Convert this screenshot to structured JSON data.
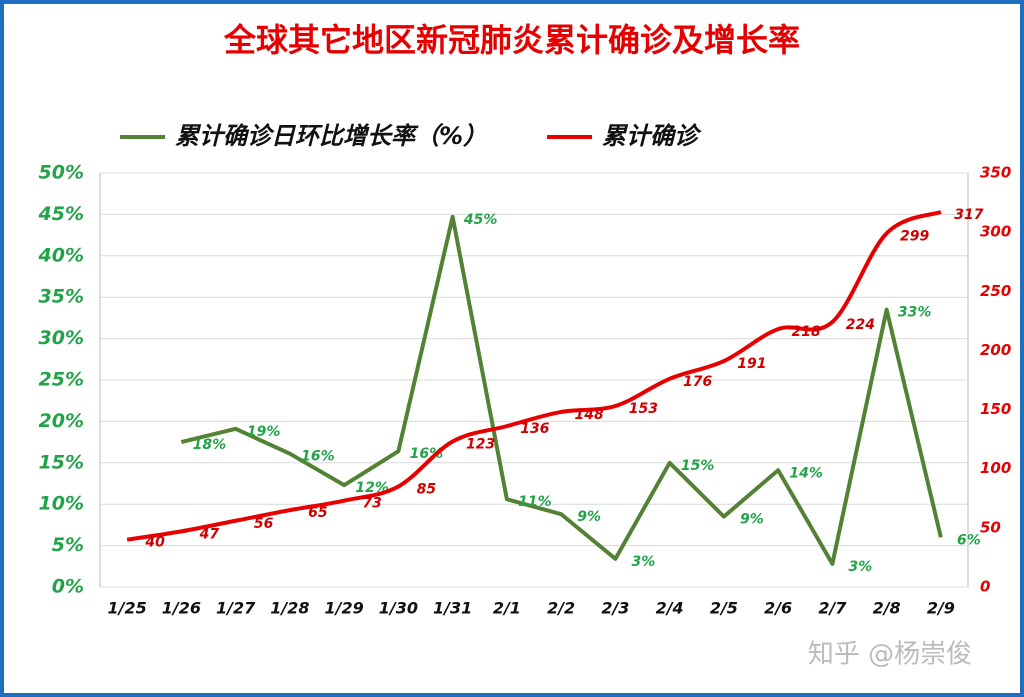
{
  "chart_data": {
    "type": "line",
    "title": "全球其它地区新冠肺炎累计确诊及增长率",
    "watermark": "知乎 @杨崇俊",
    "categories": [
      "1/25",
      "1/26",
      "1/27",
      "1/28",
      "1/29",
      "1/30",
      "1/31",
      "2/1",
      "2/2",
      "2/3",
      "2/4",
      "2/5",
      "2/6",
      "2/7",
      "2/8",
      "2/9"
    ],
    "series": [
      {
        "name": "累计确诊日环比增长率（%）",
        "color": "#548235",
        "axis": "y",
        "values": [
          null,
          17.5,
          19.1,
          16.1,
          12.3,
          16.4,
          44.7,
          10.6,
          8.8,
          3.4,
          15.0,
          8.5,
          14.1,
          2.8,
          33.5,
          6.0
        ],
        "value_labels": [
          null,
          "18%",
          "19%",
          "16%",
          "12%",
          "16%",
          "45%",
          "11%",
          "9%",
          "3%",
          "15%",
          "9%",
          "14%",
          "3%",
          "33%",
          "6%"
        ]
      },
      {
        "name": "累计确诊",
        "color": "#e60000",
        "axis": "y2",
        "values": [
          40,
          47,
          56,
          65,
          73,
          85,
          123,
          136,
          148,
          153,
          176,
          191,
          218,
          224,
          299,
          317
        ]
      }
    ],
    "ylim": [
      0,
      50
    ],
    "yticks": [
      {
        "value": 0,
        "label": "0%"
      },
      {
        "value": 5,
        "label": "5%"
      },
      {
        "value": 10,
        "label": "10%"
      },
      {
        "value": 15,
        "label": "15%"
      },
      {
        "value": 20,
        "label": "20%"
      },
      {
        "value": 25,
        "label": "25%"
      },
      {
        "value": 30,
        "label": "30%"
      },
      {
        "value": 35,
        "label": "35%"
      },
      {
        "value": 40,
        "label": "40%"
      },
      {
        "value": 45,
        "label": "45%"
      },
      {
        "value": 50,
        "label": "50%"
      }
    ],
    "y2lim": [
      0,
      350
    ],
    "y2ticks": [
      0,
      50,
      100,
      150,
      200,
      250,
      300,
      350
    ],
    "grid": true
  }
}
